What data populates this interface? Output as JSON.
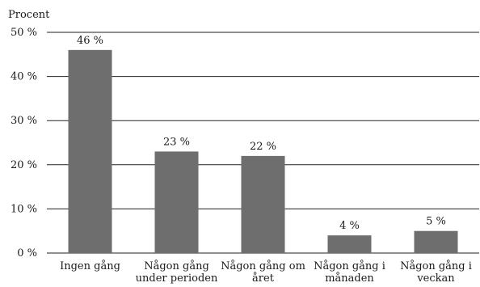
{
  "chart_data": {
    "type": "bar",
    "ylabel": "Procent",
    "xlabel": "",
    "ylim": [
      0,
      50
    ],
    "y_ticks": [
      0,
      10,
      20,
      30,
      40,
      50
    ],
    "y_tick_labels": [
      "0 %",
      "10 %",
      "20 %",
      "30 %",
      "40 %",
      "50 %"
    ],
    "grid": true,
    "categories": [
      [
        "Ingen gång"
      ],
      [
        "Någon gång",
        "under perioden"
      ],
      [
        "Någon gång om",
        "året"
      ],
      [
        "Någon gång i",
        "månaden"
      ],
      [
        "Någon gång i",
        "veckan"
      ]
    ],
    "values": [
      46,
      23,
      22,
      4,
      5
    ],
    "data_labels": [
      "46 %",
      "23 %",
      "22 %",
      "4 %",
      "5 %"
    ],
    "bar_color": "#6e6e6e"
  }
}
